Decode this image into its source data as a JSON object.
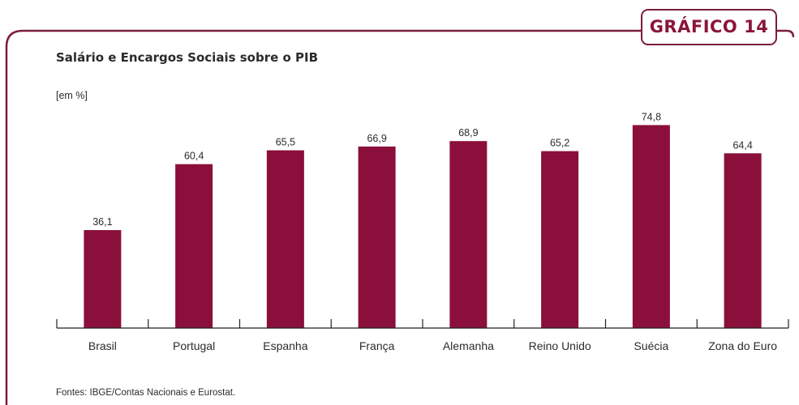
{
  "badge": "GRÁFICO 14",
  "title": "Salário e Encargos Sociais sobre o PIB",
  "unit": "[em %]",
  "source": "Fontes: IBGE/Contas Nacionais e Eurostat.",
  "colors": {
    "bar": "#8a0f3a",
    "frame": "#7a1e3f",
    "axis": "#231f20"
  },
  "chart_data": {
    "type": "bar",
    "title": "Salário e Encargos Sociais sobre o PIB",
    "ylabel": "[em %]",
    "xlabel": "",
    "categories": [
      "Brasil",
      "Portugal",
      "Espanha",
      "França",
      "Alemanha",
      "Reino Unido",
      "Suécia",
      "Zona do Euro"
    ],
    "values": [
      36.1,
      60.4,
      65.5,
      66.9,
      68.9,
      65.2,
      74.8,
      64.4
    ],
    "value_labels": [
      "36,1",
      "60,4",
      "65,5",
      "66,9",
      "68,9",
      "65,2",
      "74,8",
      "64,4"
    ],
    "ylim": [
      0,
      100
    ],
    "grid": false,
    "legend": "none",
    "data_labels": "above-bars"
  }
}
